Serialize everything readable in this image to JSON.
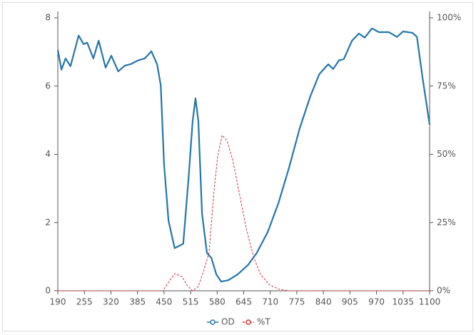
{
  "chart_data": {
    "type": "line",
    "xlim": [
      190,
      1100
    ],
    "xticks": [
      190,
      255,
      320,
      385,
      450,
      515,
      580,
      645,
      710,
      775,
      840,
      905,
      970,
      1035,
      1100
    ],
    "ylim": [
      0,
      8
    ],
    "yticks": [
      0,
      2,
      4,
      6,
      8
    ],
    "y2lim": [
      0,
      100
    ],
    "y2ticks": [
      {
        "value": 0,
        "label": "0%"
      },
      {
        "value": 25,
        "label": "25%"
      },
      {
        "value": 50,
        "label": "50%"
      },
      {
        "value": 75,
        "label": "75%"
      },
      {
        "value": 100,
        "label": "100%"
      }
    ],
    "grid": false,
    "legend": "bottom",
    "series": [
      {
        "name": "OD",
        "color": "#2277aa",
        "x": [
          190,
          199,
          209,
          221,
          241,
          253,
          262,
          277,
          290,
          307,
          321,
          338,
          354,
          368,
          386,
          403,
          419,
          433,
          442,
          450,
          461,
          476,
          497,
          510,
          520,
          527,
          534,
          543,
          555,
          566,
          578,
          590,
          607,
          630,
          655,
          677,
          704,
          730,
          756,
          782,
          808,
          830,
          852,
          864,
          878,
          890,
          910,
          927,
          941,
          959,
          976,
          1000,
          1020,
          1035,
          1058,
          1069,
          1083,
          1100
        ],
        "values": [
          7.06,
          6.48,
          6.81,
          6.58,
          7.48,
          7.23,
          7.27,
          6.81,
          7.33,
          6.54,
          6.89,
          6.43,
          6.6,
          6.64,
          6.75,
          6.81,
          7.02,
          6.64,
          6.02,
          3.72,
          2.05,
          1.25,
          1.38,
          3.3,
          4.97,
          5.64,
          4.97,
          2.26,
          1.11,
          0.96,
          0.48,
          0.27,
          0.31,
          0.48,
          0.75,
          1.11,
          1.73,
          2.57,
          3.61,
          4.76,
          5.7,
          6.35,
          6.64,
          6.5,
          6.75,
          6.79,
          7.33,
          7.54,
          7.42,
          7.69,
          7.58,
          7.58,
          7.44,
          7.6,
          7.56,
          7.44,
          6.22,
          4.87
        ]
      },
      {
        "name": "%T",
        "color": "#d03030",
        "axis": "y2",
        "dashed": true,
        "x": [
          190,
          300,
          400,
          447,
          462,
          476,
          494,
          506,
          520,
          534,
          548,
          560,
          572,
          581,
          592,
          604,
          618,
          634,
          651,
          669,
          686,
          709,
          733,
          756,
          850,
          950,
          1100
        ],
        "values": [
          0,
          0,
          0,
          0,
          3.4,
          6.3,
          5.2,
          2.1,
          0,
          1.6,
          7.8,
          13.8,
          36,
          49,
          57,
          55,
          48,
          36,
          23,
          12.5,
          6,
          2.1,
          0.5,
          0,
          0,
          0,
          0
        ]
      }
    ]
  }
}
